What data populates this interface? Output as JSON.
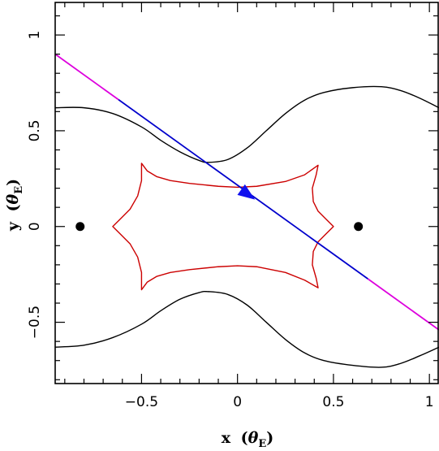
{
  "chart_data": {
    "type": "line",
    "title": "",
    "xlabel": "x (θE)",
    "ylabel": "y (θE)",
    "xlabel_parts": {
      "var": "x",
      "open": "(",
      "theta": "θ",
      "sub": "E",
      "close": ")"
    },
    "ylabel_parts": {
      "var": "y",
      "open": "(",
      "theta": "θ",
      "sub": "E",
      "close": ")"
    },
    "xlim": [
      -0.95,
      1.05
    ],
    "ylim": [
      -0.82,
      1.17
    ],
    "xticks": [
      -0.5,
      0,
      0.5,
      1
    ],
    "xtick_labels": [
      "−0.5",
      "0",
      "0.5",
      "1"
    ],
    "yticks": [
      -0.5,
      0,
      0.5,
      1
    ],
    "ytick_labels": [
      "−0.5",
      "0",
      "0.5",
      "1"
    ],
    "grid": false,
    "colors": {
      "critical_curve": "#000000",
      "caustic": "#cc0000",
      "trajectory_inner": "#0000cc",
      "trajectory_outer": "#dd00dd",
      "arrow": "#1010ee",
      "lens": "#000000"
    },
    "lenses": [
      {
        "x": -0.82,
        "y": 0.0
      },
      {
        "x": 0.63,
        "y": 0.0
      }
    ],
    "critical_curve_upper": [
      [
        -0.95,
        0.62
      ],
      [
        -0.8,
        0.62
      ],
      [
        -0.65,
        0.59
      ],
      [
        -0.5,
        0.52
      ],
      [
        -0.4,
        0.45
      ],
      [
        -0.3,
        0.39
      ],
      [
        -0.2,
        0.345
      ],
      [
        -0.15,
        0.335
      ],
      [
        -0.05,
        0.35
      ],
      [
        0.05,
        0.41
      ],
      [
        0.15,
        0.5
      ],
      [
        0.25,
        0.59
      ],
      [
        0.35,
        0.66
      ],
      [
        0.45,
        0.7
      ],
      [
        0.6,
        0.725
      ],
      [
        0.75,
        0.73
      ],
      [
        0.85,
        0.71
      ],
      [
        0.95,
        0.67
      ],
      [
        1.05,
        0.62
      ]
    ],
    "critical_curve_lower": [
      [
        -0.95,
        -0.63
      ],
      [
        -0.8,
        -0.62
      ],
      [
        -0.65,
        -0.58
      ],
      [
        -0.5,
        -0.51
      ],
      [
        -0.4,
        -0.44
      ],
      [
        -0.3,
        -0.38
      ],
      [
        -0.2,
        -0.345
      ],
      [
        -0.15,
        -0.34
      ],
      [
        -0.05,
        -0.355
      ],
      [
        0.05,
        -0.41
      ],
      [
        0.15,
        -0.5
      ],
      [
        0.25,
        -0.59
      ],
      [
        0.35,
        -0.66
      ],
      [
        0.45,
        -0.7
      ],
      [
        0.6,
        -0.725
      ],
      [
        0.75,
        -0.735
      ],
      [
        0.85,
        -0.715
      ],
      [
        0.95,
        -0.675
      ],
      [
        1.05,
        -0.63
      ]
    ],
    "caustic": [
      [
        -0.5,
        0.33
      ],
      [
        -0.47,
        0.29
      ],
      [
        -0.42,
        0.26
      ],
      [
        -0.35,
        0.24
      ],
      [
        -0.25,
        0.225
      ],
      [
        -0.1,
        0.21
      ],
      [
        0.0,
        0.205
      ],
      [
        0.1,
        0.21
      ],
      [
        0.25,
        0.235
      ],
      [
        0.35,
        0.27
      ],
      [
        0.42,
        0.32
      ],
      [
        0.41,
        0.27
      ],
      [
        0.39,
        0.2
      ],
      [
        0.395,
        0.13
      ],
      [
        0.42,
        0.08
      ],
      [
        0.46,
        0.04
      ],
      [
        0.5,
        0.0
      ],
      [
        0.46,
        -0.04
      ],
      [
        0.42,
        -0.08
      ],
      [
        0.395,
        -0.13
      ],
      [
        0.39,
        -0.2
      ],
      [
        0.41,
        -0.27
      ],
      [
        0.42,
        -0.32
      ],
      [
        0.35,
        -0.28
      ],
      [
        0.25,
        -0.24
      ],
      [
        0.1,
        -0.21
      ],
      [
        0.0,
        -0.205
      ],
      [
        -0.1,
        -0.21
      ],
      [
        -0.25,
        -0.225
      ],
      [
        -0.35,
        -0.24
      ],
      [
        -0.42,
        -0.26
      ],
      [
        -0.47,
        -0.29
      ],
      [
        -0.5,
        -0.33
      ],
      [
        -0.5,
        -0.24
      ],
      [
        -0.52,
        -0.16
      ],
      [
        -0.56,
        -0.09
      ],
      [
        -0.61,
        -0.04
      ],
      [
        -0.65,
        0.0
      ],
      [
        -0.61,
        0.04
      ],
      [
        -0.56,
        0.09
      ],
      [
        -0.52,
        0.16
      ],
      [
        -0.5,
        0.24
      ],
      [
        -0.5,
        0.33
      ]
    ],
    "trajectory": {
      "start": [
        -0.95,
        0.9
      ],
      "end": [
        1.05,
        -0.54
      ],
      "inner_x_range": [
        -0.62,
        0.68
      ]
    },
    "arrow": {
      "x": 0.05,
      "y": 0.17,
      "dx": 1.0,
      "dy": -0.72
    }
  }
}
